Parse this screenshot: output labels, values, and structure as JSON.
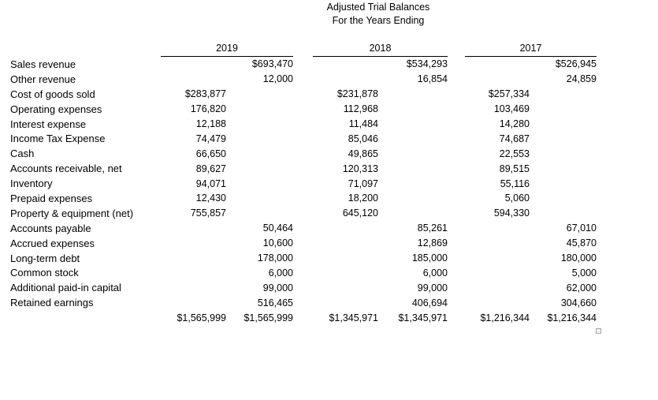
{
  "title": {
    "line1": "Adjusted Trial Balances",
    "line2": "For the Years Ending"
  },
  "year_headers": [
    "2019",
    "2018",
    "2017"
  ],
  "chart_data": {
    "type": "table",
    "title": "Adjusted Trial Balances For the Years Ending",
    "column_groups": [
      "2019",
      "2018",
      "2017"
    ],
    "columns_per_group": [
      "debit",
      "credit"
    ]
  },
  "table": {
    "rows": [
      {
        "label": "Sales revenue",
        "cells": [
          "",
          "$693,470",
          "",
          "$534,293",
          "",
          "$526,945"
        ]
      },
      {
        "label": "Other revenue",
        "cells": [
          "",
          "12,000",
          "",
          "16,854",
          "",
          "24,859"
        ]
      },
      {
        "label": "Cost of goods sold",
        "cells": [
          "$283,877",
          "",
          "$231,878",
          "",
          "$257,334",
          ""
        ]
      },
      {
        "label": "Operating expenses",
        "cells": [
          "176,820",
          "",
          "112,968",
          "",
          "103,469",
          ""
        ]
      },
      {
        "label": "Interest expense",
        "cells": [
          "12,188",
          "",
          "11,484",
          "",
          "14,280",
          ""
        ]
      },
      {
        "label": "Income Tax Expense",
        "cells": [
          "74,479",
          "",
          "85,046",
          "",
          "74,687",
          ""
        ]
      },
      {
        "label": "Cash",
        "cells": [
          "66,650",
          "",
          "49,865",
          "",
          "22,553",
          ""
        ]
      },
      {
        "label": "Accounts receivable, net",
        "cells": [
          "89,627",
          "",
          "120,313",
          "",
          "89,515",
          ""
        ]
      },
      {
        "label": "Inventory",
        "cells": [
          "94,071",
          "",
          "71,097",
          "",
          "55,116",
          ""
        ]
      },
      {
        "label": "Prepaid expenses",
        "cells": [
          "12,430",
          "",
          "18,200",
          "",
          "5,060",
          ""
        ]
      },
      {
        "label": "Property & equipment (net)",
        "cells": [
          "755,857",
          "",
          "645,120",
          "",
          "594,330",
          ""
        ]
      },
      {
        "label": "Accounts payable",
        "cells": [
          "",
          "50,464",
          "",
          "85,261",
          "",
          "67,010"
        ]
      },
      {
        "label": "Accrued expenses",
        "cells": [
          "",
          "10,600",
          "",
          "12,869",
          "",
          "45,870"
        ]
      },
      {
        "label": "Long-term debt",
        "cells": [
          "",
          "178,000",
          "",
          "185,000",
          "",
          "180,000"
        ]
      },
      {
        "label": "Common stock",
        "cells": [
          "",
          "6,000",
          "",
          "6,000",
          "",
          "5,000"
        ]
      },
      {
        "label": "Additional paid-in capital",
        "cells": [
          "",
          "99,000",
          "",
          "99,000",
          "",
          "62,000"
        ]
      },
      {
        "label": "Retained earnings",
        "cells": [
          "",
          "516,465",
          "",
          "406,694",
          "",
          "304,660"
        ]
      },
      {
        "label": "",
        "is_total": true,
        "cells": [
          "$1,565,999",
          "$1,565,999",
          "$1,345,971",
          "$1,345,971",
          "$1,216,344",
          "$1,216,344"
        ]
      }
    ]
  }
}
